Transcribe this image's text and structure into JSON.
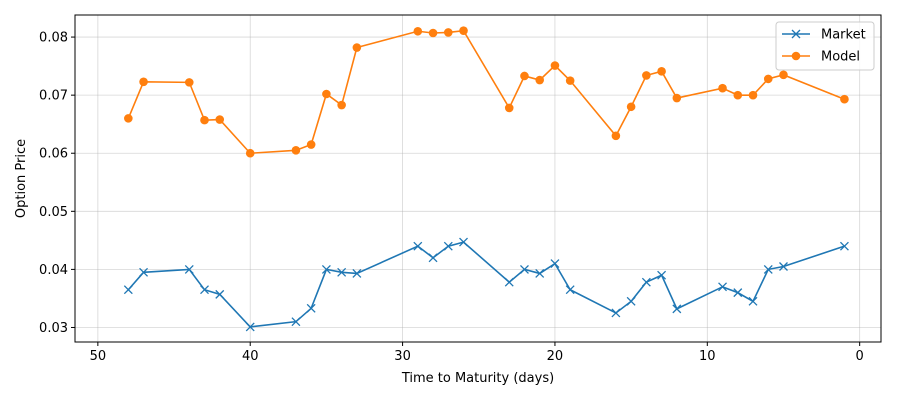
{
  "chart_data": {
    "type": "line",
    "xlabel": "Time to Maturity (days)",
    "ylabel": "Option Price",
    "xlim": [
      51.5,
      -1.4
    ],
    "ylim": [
      0.0275,
      0.0838
    ],
    "xticks": [
      50,
      40,
      30,
      20,
      10,
      0
    ],
    "xtick_labels": [
      "50",
      "40",
      "30",
      "20",
      "10",
      "0"
    ],
    "yticks": [
      0.03,
      0.04,
      0.05,
      0.06,
      0.07,
      0.08
    ],
    "ytick_labels": [
      "0.03",
      "0.04",
      "0.05",
      "0.06",
      "0.07",
      "0.08"
    ],
    "grid": true,
    "legend": "top-right",
    "series": [
      {
        "name": "Market",
        "color": "#1f77b4",
        "marker": "x",
        "x": [
          48,
          47,
          44,
          43,
          42,
          40,
          37,
          36,
          35,
          34,
          33,
          29,
          28,
          27,
          26,
          23,
          22,
          21,
          20,
          19,
          16,
          15,
          14,
          13,
          12,
          9,
          8,
          7,
          6,
          5,
          1
        ],
        "y": [
          0.0365,
          0.0395,
          0.04,
          0.0365,
          0.0357,
          0.0301,
          0.031,
          0.0333,
          0.04,
          0.0395,
          0.0393,
          0.044,
          0.042,
          0.044,
          0.0447,
          0.0378,
          0.04,
          0.0393,
          0.041,
          0.0365,
          0.0325,
          0.0345,
          0.0378,
          0.039,
          0.0332,
          0.037,
          0.036,
          0.0345,
          0.04,
          0.0405,
          0.044
        ]
      },
      {
        "name": "Model",
        "color": "#ff7f0e",
        "marker": "o",
        "x": [
          48,
          47,
          44,
          43,
          42,
          40,
          37,
          36,
          35,
          34,
          33,
          29,
          28,
          27,
          26,
          23,
          22,
          21,
          20,
          19,
          16,
          15,
          14,
          13,
          12,
          9,
          8,
          7,
          6,
          5,
          1
        ],
        "y": [
          0.066,
          0.0723,
          0.0722,
          0.0657,
          0.0658,
          0.06,
          0.0605,
          0.0615,
          0.0702,
          0.0683,
          0.0782,
          0.081,
          0.0807,
          0.0808,
          0.0811,
          0.0678,
          0.0733,
          0.0726,
          0.0751,
          0.0725,
          0.063,
          0.068,
          0.0734,
          0.0741,
          0.0695,
          0.0712,
          0.07,
          0.07,
          0.0728,
          0.0735,
          0.0693
        ]
      }
    ]
  }
}
